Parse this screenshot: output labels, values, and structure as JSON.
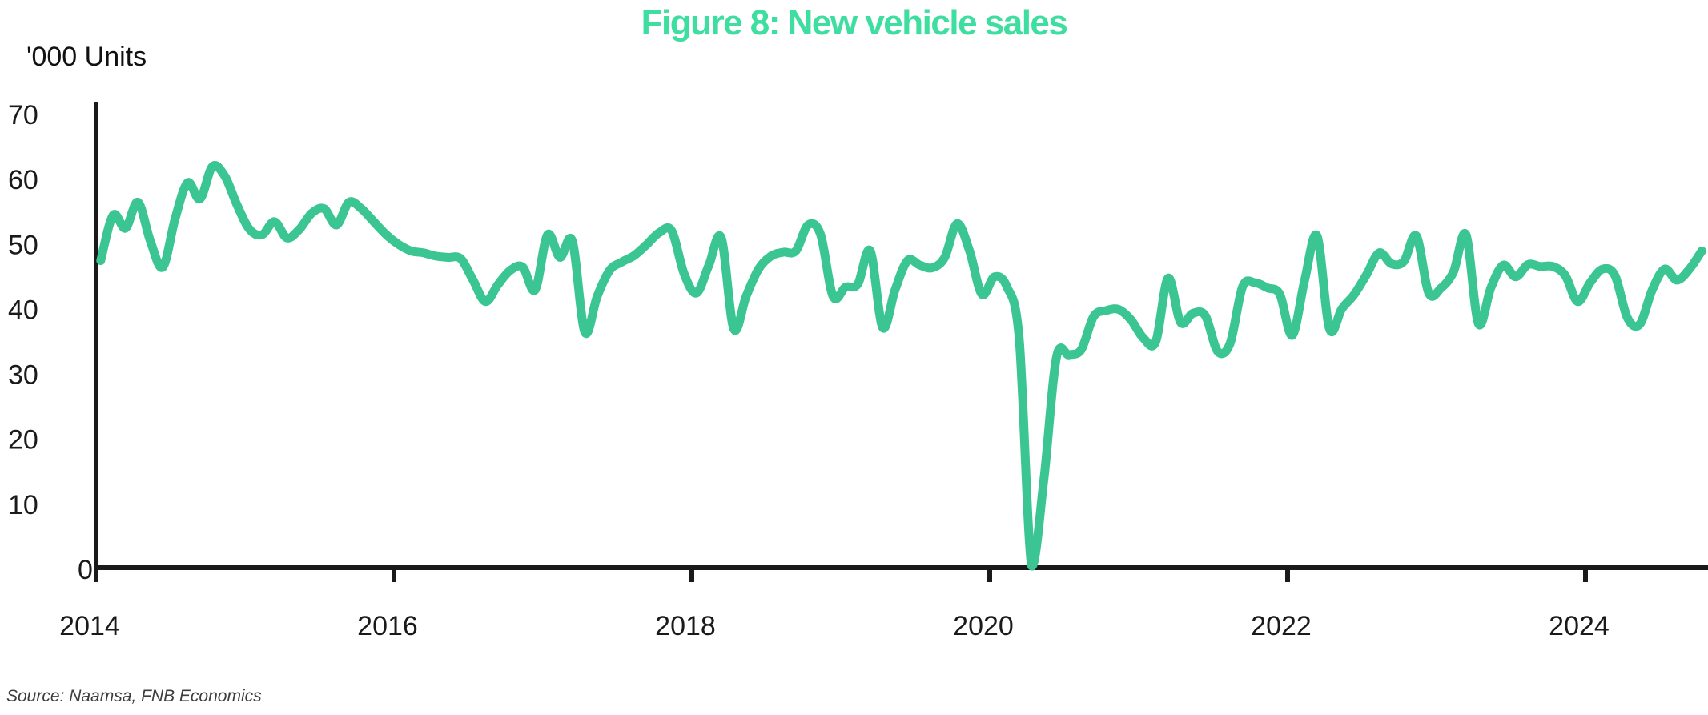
{
  "title": "Figure 8: New vehicle sales",
  "y_axis_label": "'000 Units",
  "source_note": "Source: Naamsa, FNB Economics",
  "colors": {
    "title_text": "#3edda0",
    "line": "#3ac593",
    "axis": "#1a1a1a",
    "tick_text": "#1a1a1a",
    "source_text": "#3d3d3d",
    "background": "#ffffff"
  },
  "chart_data": {
    "type": "line",
    "title": "Figure 8: New vehicle sales",
    "xlabel": "",
    "ylabel": "'000 Units",
    "ylim": [
      0,
      70
    ],
    "yticks": [
      0,
      10,
      20,
      30,
      40,
      50,
      60,
      70
    ],
    "xticks": [
      "2014",
      "2016",
      "2018",
      "2020",
      "2022",
      "2024"
    ],
    "frequency": "monthly",
    "x_start": "2014-01",
    "x_end": "2024-10",
    "grid": false,
    "legend": "none",
    "notable_points": {
      "peak": {
        "date": "2014-10",
        "value": 62
      },
      "covid_trough": {
        "date": "2020-04",
        "value": 0.5
      }
    },
    "series": [
      {
        "name": "New vehicle sales ('000 units, monthly)",
        "values": [
          47.5,
          54.5,
          52.5,
          56.5,
          50.5,
          46.5,
          54.0,
          59.5,
          57.0,
          62.0,
          60.5,
          56.0,
          52.3,
          51.5,
          53.5,
          51.0,
          52.3,
          54.8,
          55.5,
          53.0,
          56.5,
          55.5,
          53.5,
          51.5,
          50.0,
          49.0,
          48.7,
          48.2,
          48.0,
          47.8,
          44.5,
          41.2,
          43.8,
          46.0,
          46.5,
          43.0,
          51.5,
          48.0,
          50.5,
          36.5,
          42.0,
          46.0,
          47.3,
          48.3,
          50.0,
          51.8,
          52.1,
          45.5,
          42.5,
          46.8,
          51.0,
          37.0,
          42.0,
          46.2,
          48.2,
          48.8,
          49.0,
          53.0,
          51.5,
          42.0,
          43.4,
          43.9,
          49.0,
          37.2,
          43.0,
          47.5,
          46.8,
          46.4,
          48.0,
          53.2,
          49.0,
          42.3,
          45.0,
          43.5,
          35.5,
          0.5,
          14.0,
          32.6,
          33.0,
          33.8,
          38.9,
          39.8,
          40.0,
          38.4,
          35.6,
          35.0,
          44.8,
          38.0,
          39.4,
          39.0,
          33.5,
          34.8,
          43.5,
          44.1,
          43.3,
          42.3,
          36.0,
          44.5,
          51.3,
          37.0,
          40.1,
          42.3,
          45.4,
          48.7,
          47.0,
          47.4,
          51.3,
          42.5,
          43.3,
          45.8,
          51.5,
          37.8,
          43.3,
          46.8,
          45.0,
          46.9,
          46.6,
          46.6,
          45.2,
          41.2,
          44.1,
          46.2,
          45.2,
          38.7,
          37.7,
          43.0,
          46.2,
          44.5,
          46.2,
          49.0
        ]
      }
    ]
  }
}
